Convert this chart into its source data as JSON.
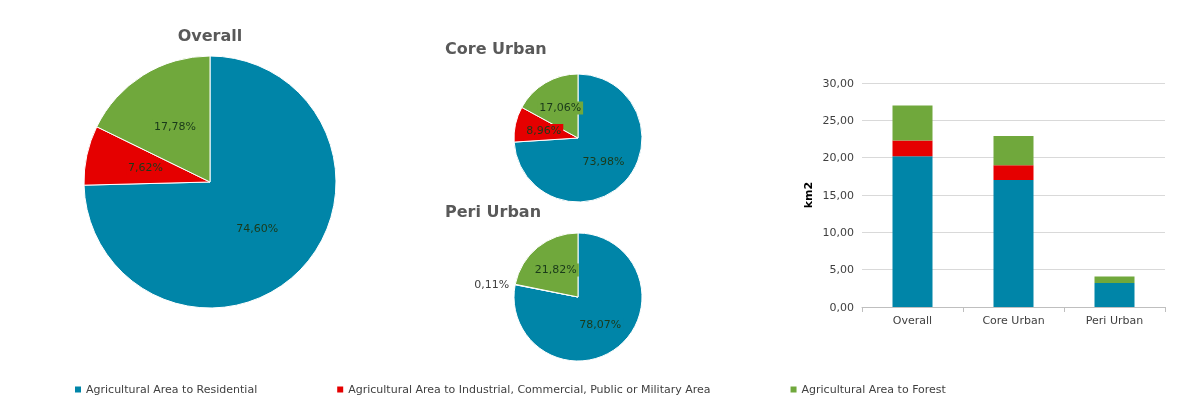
{
  "chart_data": [
    {
      "type": "pie",
      "title": "Overall",
      "categories": [
        null,
        null,
        null
      ],
      "values": [
        74.6,
        7.62,
        17.78
      ],
      "colors": [
        "#0085a8",
        "#e50000",
        "#70a83c"
      ],
      "value_labels": [
        "74,60%",
        "7,62%",
        "17,78%"
      ]
    },
    {
      "type": "pie",
      "title": "Core Urban",
      "categories": [
        null,
        null,
        null
      ],
      "values": [
        73.98,
        8.96,
        17.06
      ],
      "colors": [
        "#0085a8",
        "#e50000",
        "#70a83c"
      ],
      "value_labels": [
        "73,98%",
        "8,96%",
        "17,06%"
      ]
    },
    {
      "type": "pie",
      "title": "Peri Urban",
      "categories": [
        null,
        null,
        null
      ],
      "values": [
        78.07,
        0.11,
        21.82
      ],
      "colors": [
        "#0085a8",
        "#e50000",
        "#70a83c"
      ],
      "value_labels": [
        "78,07%",
        "0,11%",
        "21,82%"
      ]
    },
    {
      "type": "bar",
      "stacked": true,
      "categories": [
        "Overall",
        "Core Urban",
        "Peri Urban"
      ],
      "ylabel": "km2",
      "ylim": [
        0,
        30
      ],
      "yticks": [
        {
          "value": 0,
          "label": "0,00"
        },
        {
          "value": 5,
          "label": "5,00"
        },
        {
          "value": 10,
          "label": "10,00"
        },
        {
          "value": 15,
          "label": "15,00"
        },
        {
          "value": 20,
          "label": "20,00"
        },
        {
          "value": 25,
          "label": "25,00"
        },
        {
          "value": 30,
          "label": "30,00"
        }
      ],
      "grid": "y",
      "legend": "bottom",
      "series": [
        {
          "name": "Agricultural Area to Residential",
          "color": "#0085a8",
          "values": [
            20.2,
            17.0,
            3.2
          ]
        },
        {
          "name": "Agricultural Area to Industrial, Commercial, Public or Military Area",
          "color": "#e50000",
          "values": [
            2.1,
            2.0,
            0.0
          ]
        },
        {
          "name": "Agricultural Area to Forest",
          "color": "#70a83c",
          "values": [
            4.7,
            3.9,
            0.9
          ]
        }
      ]
    }
  ]
}
